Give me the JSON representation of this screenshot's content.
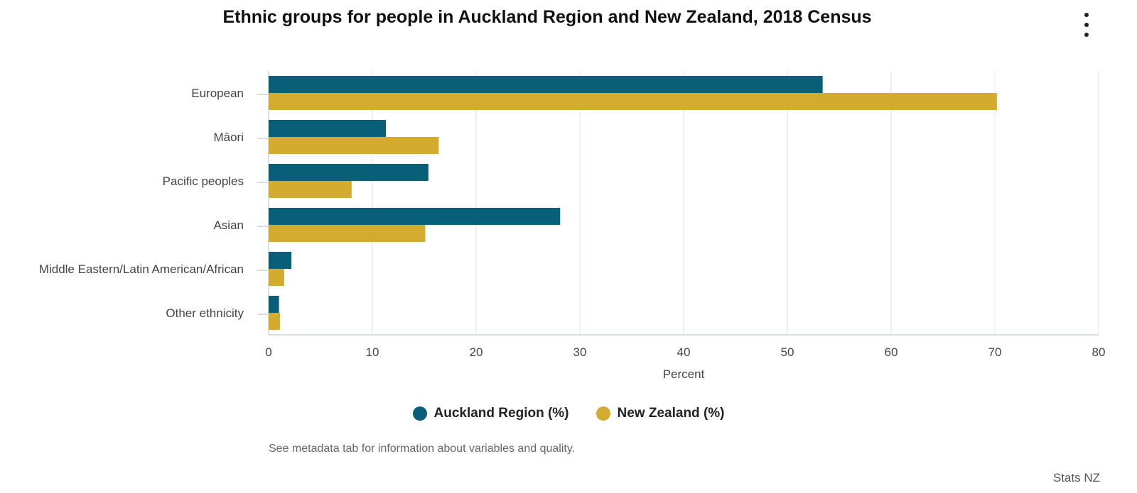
{
  "title": "Ethnic groups for people in Auckland Region and New Zealand, 2018 Census",
  "menu": {
    "icon": "more-vertical-icon"
  },
  "footnote": "See metadata tab for information about variables and quality.",
  "credit": "Stats NZ",
  "colors": {
    "auckland": "#075f78",
    "new_zealand": "#d3ab2f",
    "grid": "#dde3ea",
    "axis": "#c9d4e2"
  },
  "chart_data": {
    "type": "bar",
    "orientation": "horizontal",
    "categories": [
      "European",
      "Māori",
      "Pacific peoples",
      "Asian",
      "Middle Eastern/Latin American/African",
      "Other ethnicity"
    ],
    "series": [
      {
        "name": "Auckland Region (%)",
        "values": [
          53.4,
          11.3,
          15.4,
          28.1,
          2.2,
          1.0
        ]
      },
      {
        "name": "New Zealand (%)",
        "values": [
          70.2,
          16.4,
          8.0,
          15.1,
          1.5,
          1.1
        ]
      }
    ],
    "xlabel": "Percent",
    "ylabel": "",
    "xlim": [
      0,
      80
    ],
    "xticks": [
      "0",
      "10",
      "20",
      "30",
      "40",
      "50",
      "60",
      "70",
      "80"
    ],
    "grid": true,
    "legend_position": "bottom"
  }
}
